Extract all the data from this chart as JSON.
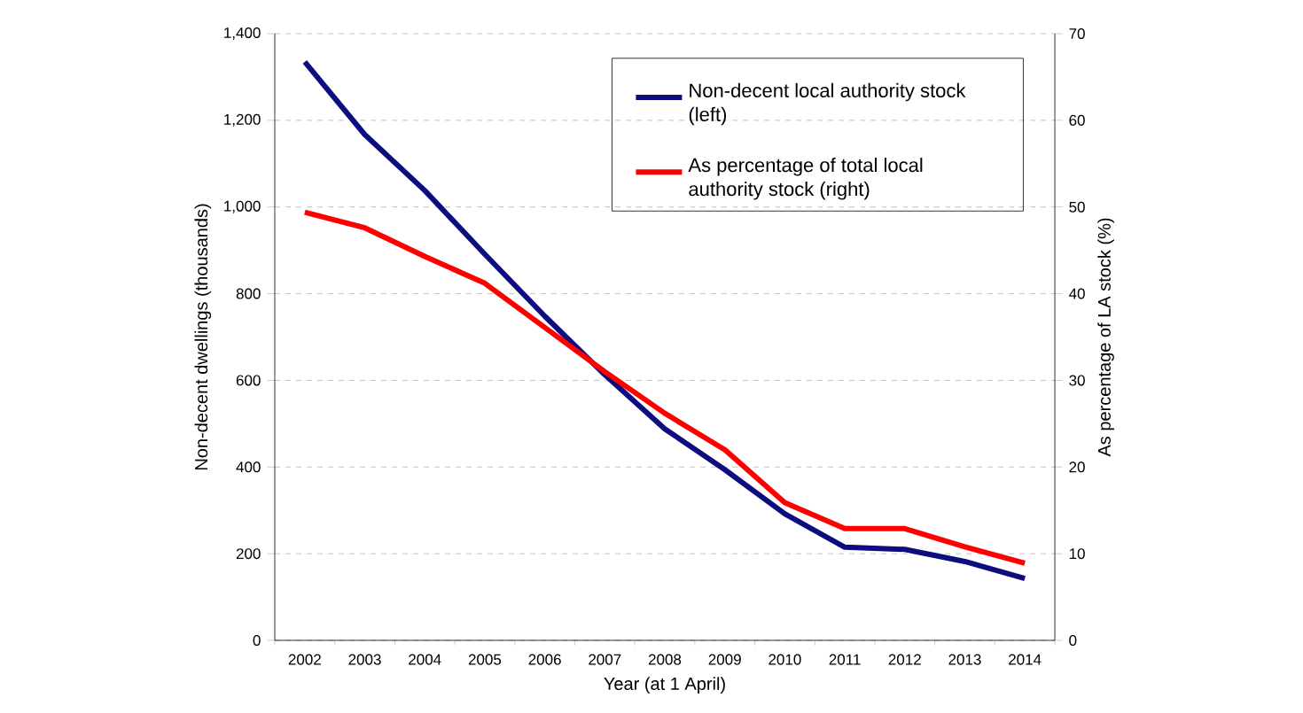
{
  "chart_data": {
    "type": "line",
    "categories": [
      "2002",
      "2003",
      "2004",
      "2005",
      "2006",
      "2007",
      "2008",
      "2009",
      "2010",
      "2011",
      "2012",
      "2013",
      "2014"
    ],
    "xlabel": "Year (at 1 April)",
    "ylabel": "Non-decent dwellings (thousands)",
    "y2label": "As percentage of LA stock (%)",
    "ylim": [
      0,
      1400
    ],
    "yticks": [
      0,
      200,
      400,
      600,
      800,
      {
        "value": 1000,
        "label": "1,000"
      },
      {
        "value": 1200,
        "label": "1,200"
      },
      {
        "value": 1400,
        "label": "1,400"
      }
    ],
    "y2lim": [
      0,
      70
    ],
    "y2ticks": [
      0,
      10,
      20,
      30,
      40,
      50,
      60,
      70
    ],
    "grid": "y",
    "legend": "top right",
    "marker": "none",
    "line_style": "solid",
    "series": [
      {
        "name": "Non-decent local authority stock (left)",
        "color": "#0d0d80",
        "values": [
          1335,
          1167,
          1038,
          891,
          748,
          613,
          488,
          394,
          292,
          215,
          210,
          182,
          143
        ]
      },
      {
        "name": "As percentage of total local authority stock (right)",
        "color": "#ff0000",
        "axis": "y2",
        "values": [
          49.4,
          47.6,
          44.3,
          41.2,
          36.1,
          31.0,
          26.2,
          22.0,
          15.9,
          12.9,
          12.9,
          10.8,
          8.9
        ]
      }
    ]
  }
}
